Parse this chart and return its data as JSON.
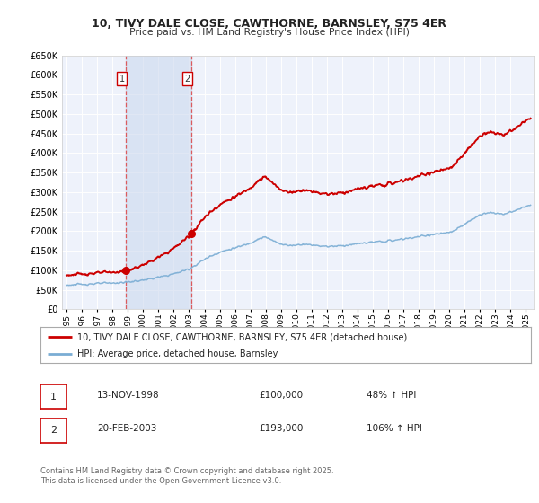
{
  "title": "10, TIVY DALE CLOSE, CAWTHORNE, BARNSLEY, S75 4ER",
  "subtitle": "Price paid vs. HM Land Registry's House Price Index (HPI)",
  "bg_color": "#ffffff",
  "plot_bg_color": "#eef2fb",
  "grid_color": "#ffffff",
  "red_line_color": "#cc0000",
  "blue_line_color": "#7aadd4",
  "sale1_date": 1998.87,
  "sale1_price": 100000,
  "sale2_date": 2003.13,
  "sale2_price": 193000,
  "ylim": [
    0,
    650000
  ],
  "xlim_start": 1994.7,
  "xlim_end": 2025.5,
  "legend_label_red": "10, TIVY DALE CLOSE, CAWTHORNE, BARNSLEY, S75 4ER (detached house)",
  "legend_label_blue": "HPI: Average price, detached house, Barnsley",
  "table_row1": [
    "1",
    "13-NOV-1998",
    "£100,000",
    "48% ↑ HPI"
  ],
  "table_row2": [
    "2",
    "20-FEB-2003",
    "£193,000",
    "106% ↑ HPI"
  ],
  "footnote": "Contains HM Land Registry data © Crown copyright and database right 2025.\nThis data is licensed under the Open Government Licence v3.0.",
  "shade_x1": 1998.87,
  "shade_x2": 2003.13,
  "hpi_years": [
    1995.0,
    1995.5,
    1996.0,
    1996.5,
    1997.0,
    1997.5,
    1998.0,
    1998.5,
    1999.0,
    1999.5,
    2000.0,
    2000.5,
    2001.0,
    2001.5,
    2002.0,
    2002.5,
    2003.0,
    2003.5,
    2004.0,
    2004.5,
    2005.0,
    2005.5,
    2006.0,
    2006.5,
    2007.0,
    2007.5,
    2008.0,
    2008.5,
    2009.0,
    2009.5,
    2010.0,
    2010.5,
    2011.0,
    2011.5,
    2012.0,
    2012.5,
    2013.0,
    2013.5,
    2014.0,
    2014.5,
    2015.0,
    2015.5,
    2016.0,
    2016.5,
    2017.0,
    2017.5,
    2018.0,
    2018.5,
    2019.0,
    2019.5,
    2020.0,
    2020.5,
    2021.0,
    2021.5,
    2022.0,
    2022.5,
    2023.0,
    2023.5,
    2024.0,
    2024.5,
    2025.0
  ],
  "hpi_values": [
    62000,
    63000,
    64000,
    65000,
    66000,
    67000,
    67500,
    68000,
    70000,
    72000,
    75000,
    78000,
    82000,
    86000,
    91000,
    97000,
    103000,
    115000,
    128000,
    138000,
    146000,
    152000,
    157000,
    163000,
    170000,
    180000,
    185000,
    175000,
    168000,
    163000,
    165000,
    167000,
    165000,
    163000,
    161000,
    162000,
    163000,
    165000,
    168000,
    170000,
    172000,
    173000,
    175000,
    177000,
    180000,
    183000,
    186000,
    189000,
    192000,
    194000,
    196000,
    205000,
    218000,
    230000,
    242000,
    248000,
    246000,
    244000,
    248000,
    255000,
    265000
  ]
}
